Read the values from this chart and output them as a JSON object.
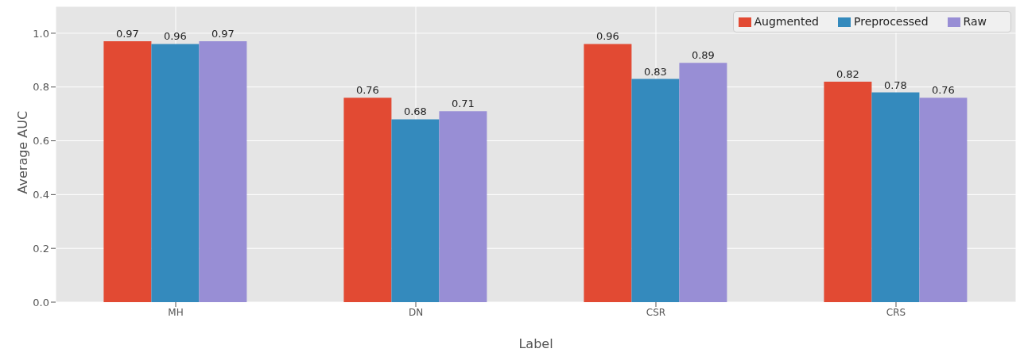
{
  "chart_data": {
    "type": "bar",
    "xlabel": "Label",
    "ylabel": "Average AUC",
    "categories": [
      "MH",
      "DN",
      "CSR",
      "CRS"
    ],
    "series": [
      {
        "name": "Augmented",
        "color": "#e24a33",
        "values": [
          0.97,
          0.76,
          0.96,
          0.82
        ]
      },
      {
        "name": "Preprocessed",
        "color": "#348abd",
        "values": [
          0.96,
          0.68,
          0.83,
          0.78
        ]
      },
      {
        "name": "Raw",
        "color": "#988ed5",
        "values": [
          0.97,
          0.71,
          0.89,
          0.76
        ]
      }
    ],
    "ylim": [
      0,
      1.1
    ],
    "yticks": [
      {
        "value": 0,
        "label": "0.0"
      },
      0.2,
      0.4,
      0.6,
      0.8,
      {
        "value": 1,
        "label": "1.0"
      }
    ],
    "grid": true,
    "legend": "top right",
    "data_labels": true
  }
}
